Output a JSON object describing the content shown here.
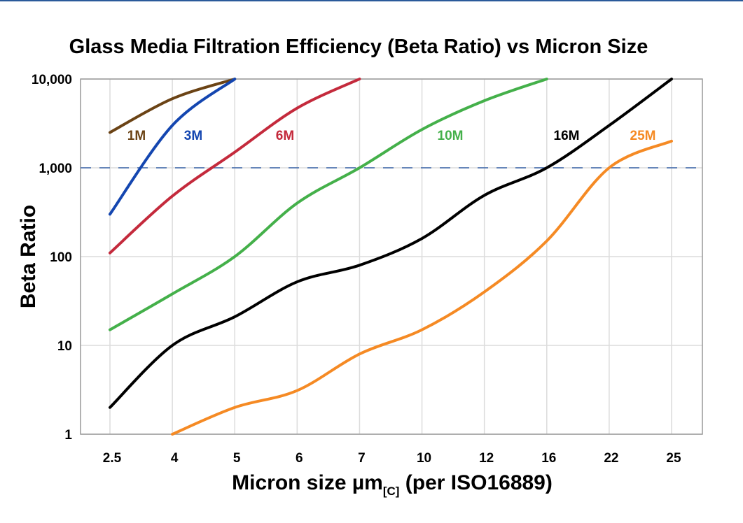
{
  "chart_data": {
    "type": "line",
    "title": "Glass Media Filtration Efficiency (Beta Ratio) vs Micron Size",
    "xlabel": "Micron size µm",
    "xlabel_sub": "[C]",
    "xlabel_suffix": " (per ISO16889)",
    "ylabel": "Beta Ratio",
    "y_scale": "log",
    "ylim": [
      1,
      10000
    ],
    "y_ticks": [
      "1",
      "10",
      "100",
      "1,000",
      "10,000"
    ],
    "categories": [
      "2.5",
      "4",
      "5",
      "6",
      "7",
      "10",
      "12",
      "16",
      "22",
      "25"
    ],
    "grid": true,
    "reference_line": {
      "value": 1000,
      "style": "dashed",
      "color": "#3a64a8"
    },
    "series": [
      {
        "name": "1M",
        "color": "#6b4315",
        "values": [
          2500,
          6000,
          10000,
          null,
          null,
          null,
          null,
          null,
          null,
          null
        ]
      },
      {
        "name": "3M",
        "color": "#1446b0",
        "values": [
          300,
          3000,
          10000,
          null,
          null,
          null,
          null,
          null,
          null,
          null
        ]
      },
      {
        "name": "6M",
        "color": "#c42a3c",
        "values": [
          110,
          480,
          1500,
          4700,
          10000,
          null,
          null,
          null,
          null,
          null
        ]
      },
      {
        "name": "10M",
        "color": "#44b04a",
        "values": [
          15,
          38,
          100,
          400,
          1000,
          2700,
          5700,
          10000,
          null,
          null
        ]
      },
      {
        "name": "16M",
        "color": "#000000",
        "values": [
          2,
          10,
          21,
          52,
          80,
          160,
          490,
          1000,
          3000,
          10000
        ]
      },
      {
        "name": "25M",
        "color": "#f58a24",
        "values": [
          null,
          1,
          2,
          3.1,
          8,
          15,
          40,
          150,
          1000,
          2000
        ]
      }
    ]
  }
}
